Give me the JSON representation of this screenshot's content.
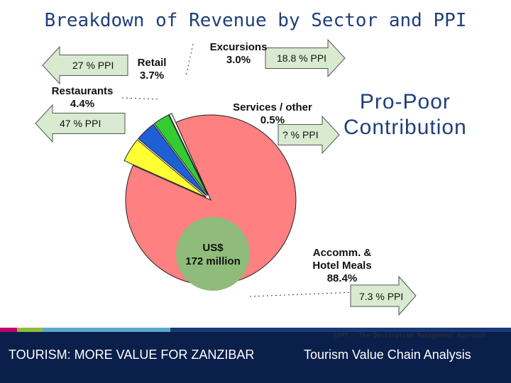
{
  "slide": {
    "title": "Breakdown of Revenue by Sector and PPI",
    "side_heading_line1": "Pro-Poor",
    "side_heading_line2": "Contribution",
    "footer_left": "TOURISM: MORE VALUE FOR ZANZIBAR",
    "footer_right": "Tourism Value Chain Analysis",
    "credit": "SPPT - The Destination Management Approach"
  },
  "colors": {
    "title": "#1f3f7a",
    "footer_bg": "#0b1f4b",
    "accomm": "#ff8080",
    "services": "#ffffff",
    "excursions": "#33cc33",
    "retail": "#1f5fd6",
    "restaurants": "#ffff33",
    "center": "#8fbc7a",
    "arrow_fill": "#d8ead0"
  },
  "chart_data": {
    "type": "pie",
    "total_line1": "US$",
    "total_line2": "172 million",
    "slices": [
      {
        "name": "Accomm. & Hotel Meals",
        "value": 88.4,
        "value_label": "88.4%",
        "ppi": "7.3 % PPI",
        "color": "#ff8080"
      },
      {
        "name": "Restaurants",
        "value": 4.4,
        "value_label": "4.4%",
        "ppi": "47 % PPI",
        "color": "#ffff33"
      },
      {
        "name": "Retail",
        "value": 3.7,
        "value_label": "3.7%",
        "ppi": "27 % PPI",
        "color": "#1f5fd6"
      },
      {
        "name": "Excursions",
        "value": 3.0,
        "value_label": "3.0%",
        "ppi": "18.8 % PPI",
        "color": "#33cc33"
      },
      {
        "name": "Services / other",
        "value": 0.5,
        "value_label": "0.5%",
        "ppi": "? % PPI",
        "color": "#ffffff"
      }
    ]
  }
}
